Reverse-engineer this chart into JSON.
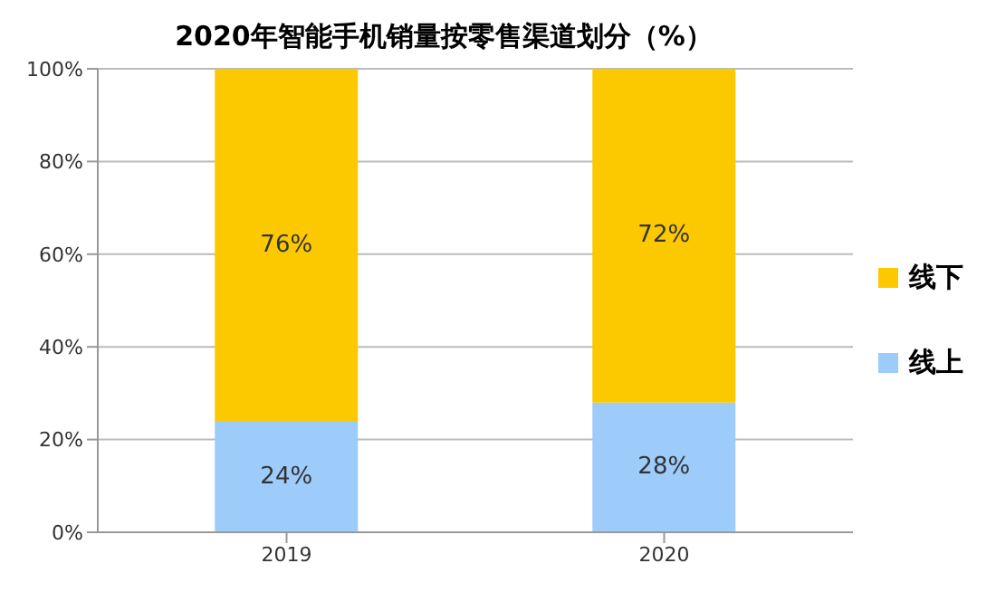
{
  "chart_data": {
    "type": "bar",
    "title": "2020年智能手机销量按零售渠道划分（%）",
    "categories": [
      "2019",
      "2020"
    ],
    "stacked": true,
    "series": [
      {
        "name": "线上",
        "color": "#9dcbfa",
        "values": [
          24,
          28
        ],
        "value_labels": [
          "24%",
          "28%"
        ]
      },
      {
        "name": "线下",
        "color": "#fcc800",
        "values": [
          76,
          72
        ],
        "value_labels": [
          "76%",
          "72%"
        ]
      }
    ],
    "ylim": [
      0,
      100
    ],
    "yticks": [
      {
        "value": 0,
        "label": "0%"
      },
      {
        "value": 20,
        "label": "20%"
      },
      {
        "value": 40,
        "label": "40%"
      },
      {
        "value": 60,
        "label": "60%"
      },
      {
        "value": 80,
        "label": "80%"
      },
      {
        "value": 100,
        "label": "100%"
      }
    ],
    "grid": "y",
    "legend": "right"
  }
}
